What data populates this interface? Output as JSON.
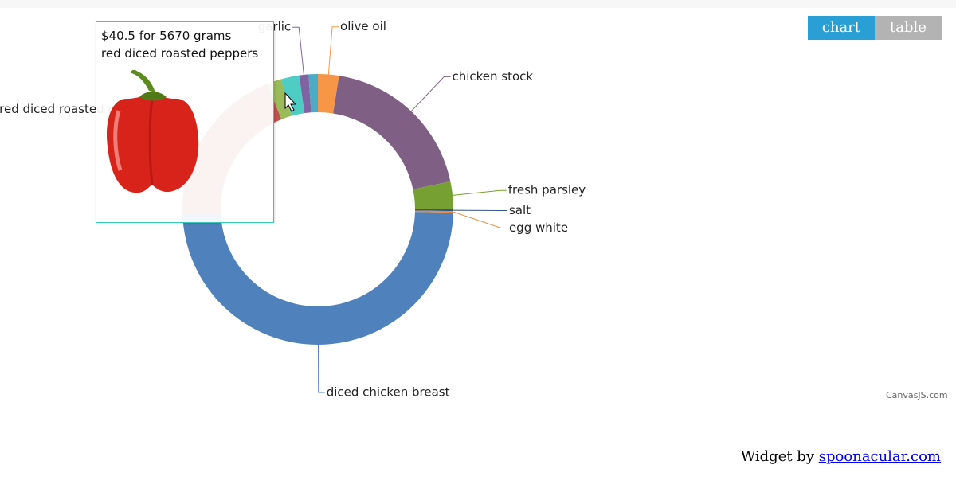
{
  "chart_data": {
    "type": "doughnut",
    "categories": [
      "olive oil",
      "chicken stock",
      "fresh parsley",
      "salt",
      "egg white",
      "diced chicken breast",
      "red diced roasted peppers",
      null,
      null,
      "garlic",
      null
    ],
    "values": [
      2.5,
      19.2,
      3.3,
      0.2,
      0.2,
      49.1,
      19.4,
      1.7,
      2.2,
      1.1,
      1.1
    ],
    "colors": [
      "#F79647",
      "#7F6084",
      "#77A033",
      "#33558B",
      "#E58C46",
      "#4F81BC",
      "#C0504E",
      "#9BBB58",
      "#4ECDC4",
      "#8064A2",
      "#4AACC5"
    ]
  },
  "tooltip": {
    "text": "$40.5 for 5670 grams",
    "category": 6
  },
  "tabs": [
    "chart",
    "table"
  ],
  "credit": "CanvasJS.com",
  "footer": {
    "text": "Widget by",
    "link": "spoonacular.com"
  }
}
